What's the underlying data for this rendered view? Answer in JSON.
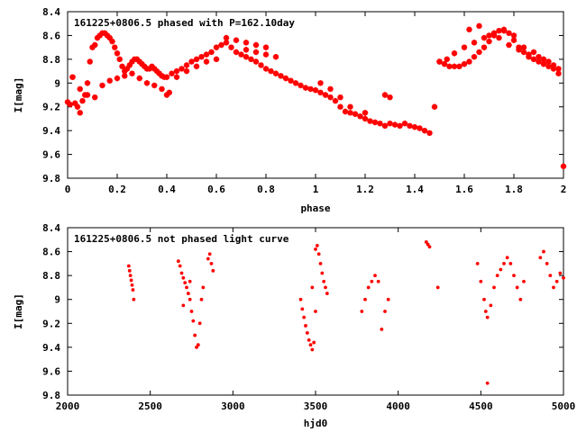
{
  "chart_data": [
    {
      "type": "scatter",
      "title": "161225+0806.5 phased with P=162.10day",
      "xlabel": "phase",
      "ylabel": "I[mag]",
      "xlim": [
        0,
        2
      ],
      "ylim": [
        8.4,
        9.8
      ],
      "y_inverted": true,
      "xticks": [
        "0",
        "0.2",
        "0.4",
        "0.6",
        "0.8",
        "1",
        "1.2",
        "1.4",
        "1.6",
        "1.8",
        "2"
      ],
      "yticks": [
        "8.4",
        "8.6",
        "8.8",
        "9",
        "9.2",
        "9.4",
        "9.6",
        "9.8"
      ],
      "marker_color": "#ff0000",
      "marker": "star",
      "points": {
        "x": [
          0.0,
          0.01,
          0.02,
          0.03,
          0.04,
          0.05,
          0.06,
          0.07,
          0.08,
          0.09,
          0.1,
          0.11,
          0.12,
          0.13,
          0.14,
          0.15,
          0.16,
          0.17,
          0.18,
          0.19,
          0.2,
          0.21,
          0.22,
          0.23,
          0.24,
          0.25,
          0.26,
          0.27,
          0.28,
          0.29,
          0.3,
          0.31,
          0.32,
          0.33,
          0.34,
          0.35,
          0.36,
          0.37,
          0.38,
          0.39,
          0.4,
          0.42,
          0.44,
          0.46,
          0.48,
          0.5,
          0.52,
          0.54,
          0.56,
          0.58,
          0.6,
          0.62,
          0.64,
          0.66,
          0.68,
          0.7,
          0.72,
          0.74,
          0.76,
          0.78,
          0.8,
          0.82,
          0.84,
          0.86,
          0.88,
          0.9,
          0.92,
          0.94,
          0.96,
          0.98,
          1.0,
          1.02,
          1.04,
          1.06,
          1.08,
          1.1,
          1.12,
          1.14,
          1.16,
          1.18,
          1.2,
          1.22,
          1.24,
          1.26,
          1.28,
          1.3,
          1.32,
          1.34,
          1.36,
          1.38,
          1.4,
          1.42,
          1.44,
          1.46,
          1.48,
          1.5,
          1.52,
          1.54,
          1.56,
          1.58,
          1.6,
          1.62,
          1.64,
          1.66,
          1.68,
          1.7,
          1.72,
          1.74,
          1.76,
          1.78,
          1.8,
          1.82,
          1.84,
          1.86,
          1.88,
          1.9,
          1.92,
          1.94,
          1.96,
          1.98,
          0.02,
          0.05,
          0.08,
          0.11,
          0.14,
          0.17,
          0.2,
          0.23,
          0.26,
          0.29,
          0.32,
          0.35,
          0.38,
          0.41,
          0.64,
          0.68,
          0.72,
          0.76,
          0.8,
          1.02,
          1.06,
          1.1,
          1.14,
          1.2,
          1.28,
          1.3,
          1.5,
          1.53,
          1.56,
          1.6,
          1.64,
          1.68,
          1.72,
          1.76,
          1.8,
          1.84,
          1.88,
          1.92,
          1.96,
          2.0,
          1.62,
          1.66,
          1.7,
          1.74,
          1.78,
          1.82,
          1.86,
          1.9,
          1.94,
          1.98,
          0.72,
          0.76,
          0.8,
          0.84,
          0.6,
          0.56,
          0.52,
          0.48,
          0.44,
          0.4
        ],
        "y": [
          9.16,
          9.18,
          8.95,
          9.17,
          9.2,
          9.25,
          9.15,
          9.1,
          9.0,
          8.82,
          8.7,
          8.68,
          8.62,
          8.6,
          8.58,
          8.58,
          8.6,
          8.62,
          8.65,
          8.7,
          8.75,
          8.8,
          8.86,
          8.9,
          8.88,
          8.85,
          8.82,
          8.8,
          8.8,
          8.82,
          8.84,
          8.86,
          8.88,
          8.88,
          8.86,
          8.88,
          8.9,
          8.92,
          8.94,
          8.95,
          8.95,
          8.92,
          8.9,
          8.88,
          8.85,
          8.82,
          8.8,
          8.78,
          8.76,
          8.74,
          8.7,
          8.68,
          8.66,
          8.7,
          8.74,
          8.76,
          8.78,
          8.8,
          8.82,
          8.85,
          8.88,
          8.9,
          8.92,
          8.94,
          8.96,
          8.98,
          9.0,
          9.02,
          9.04,
          9.05,
          9.06,
          9.08,
          9.1,
          9.12,
          9.15,
          9.2,
          9.24,
          9.25,
          9.26,
          9.28,
          9.3,
          9.32,
          9.33,
          9.34,
          9.36,
          9.34,
          9.35,
          9.36,
          9.34,
          9.36,
          9.37,
          9.38,
          9.4,
          9.42,
          9.2,
          8.82,
          8.84,
          8.86,
          8.86,
          8.86,
          8.84,
          8.82,
          8.78,
          8.74,
          8.7,
          8.65,
          8.6,
          8.56,
          8.55,
          8.58,
          8.64,
          8.7,
          8.74,
          8.78,
          8.8,
          8.82,
          8.84,
          8.86,
          8.88,
          8.92,
          8.95,
          9.05,
          9.1,
          9.12,
          9.02,
          8.98,
          8.96,
          8.94,
          8.92,
          8.96,
          9.0,
          9.02,
          9.05,
          9.08,
          8.62,
          8.64,
          8.66,
          8.68,
          8.7,
          9.0,
          9.05,
          9.12,
          9.2,
          9.25,
          9.1,
          9.12,
          8.82,
          8.8,
          8.75,
          8.7,
          8.66,
          8.62,
          8.58,
          8.56,
          8.6,
          8.7,
          8.74,
          8.8,
          8.85,
          9.7,
          8.55,
          8.52,
          8.6,
          8.62,
          8.68,
          8.72,
          8.76,
          8.78,
          8.82,
          8.88,
          8.72,
          8.74,
          8.76,
          8.78,
          8.8,
          8.82,
          8.86,
          8.9,
          8.95,
          9.1
        ]
      }
    },
    {
      "type": "scatter",
      "title": "161225+0806.5 not phased light curve",
      "xlabel": "hjd0",
      "ylabel": "I[mag]",
      "xlim": [
        2000,
        5000
      ],
      "ylim": [
        8.4,
        9.8
      ],
      "y_inverted": true,
      "xticks": [
        "2000",
        "2500",
        "3000",
        "3500",
        "4000",
        "4500",
        "5000"
      ],
      "yticks": [
        "8.4",
        "8.6",
        "8.8",
        "9",
        "9.2",
        "9.4",
        "9.6",
        "9.8"
      ],
      "marker_color": "#ff0000",
      "marker": "dot",
      "points": {
        "x": [
          2370,
          2375,
          2380,
          2385,
          2390,
          2395,
          2400,
          2670,
          2680,
          2690,
          2700,
          2710,
          2720,
          2730,
          2740,
          2750,
          2760,
          2770,
          2780,
          2790,
          2800,
          2810,
          2820,
          2700,
          2740,
          2850,
          2860,
          2870,
          2880,
          3410,
          3420,
          3430,
          3440,
          3450,
          3460,
          3470,
          3480,
          3490,
          3500,
          3510,
          3520,
          3530,
          3540,
          3550,
          3560,
          3570,
          3480,
          3500,
          3780,
          3800,
          3820,
          3840,
          3860,
          3880,
          3900,
          3920,
          3940,
          4170,
          4180,
          4190,
          4240,
          4480,
          4500,
          4520,
          4530,
          4540,
          4560,
          4580,
          4600,
          4620,
          4640,
          4660,
          4680,
          4700,
          4720,
          4740,
          4760,
          4860,
          4880,
          4900,
          4920,
          4940,
          4960,
          4980,
          5000,
          4540
        ],
        "y": [
          8.72,
          8.76,
          8.8,
          8.84,
          8.88,
          8.92,
          9.0,
          8.68,
          8.72,
          8.78,
          8.82,
          8.86,
          8.9,
          8.95,
          9.0,
          9.1,
          9.18,
          9.3,
          9.4,
          9.38,
          9.2,
          9.0,
          8.9,
          9.05,
          8.85,
          8.66,
          8.62,
          8.7,
          8.76,
          9.0,
          9.08,
          9.15,
          9.22,
          9.28,
          9.34,
          9.38,
          9.42,
          9.36,
          8.58,
          8.55,
          8.62,
          8.7,
          8.78,
          8.85,
          8.9,
          8.95,
          8.9,
          9.1,
          9.1,
          9.0,
          8.9,
          8.85,
          8.8,
          8.85,
          9.25,
          9.1,
          9.0,
          8.52,
          8.54,
          8.56,
          8.9,
          8.7,
          8.85,
          9.0,
          9.1,
          9.15,
          9.05,
          8.9,
          8.8,
          8.75,
          8.7,
          8.65,
          8.7,
          8.8,
          8.9,
          9.0,
          8.85,
          8.65,
          8.6,
          8.7,
          8.8,
          8.9,
          8.85,
          8.78,
          8.82,
          9.7
        ]
      }
    }
  ]
}
